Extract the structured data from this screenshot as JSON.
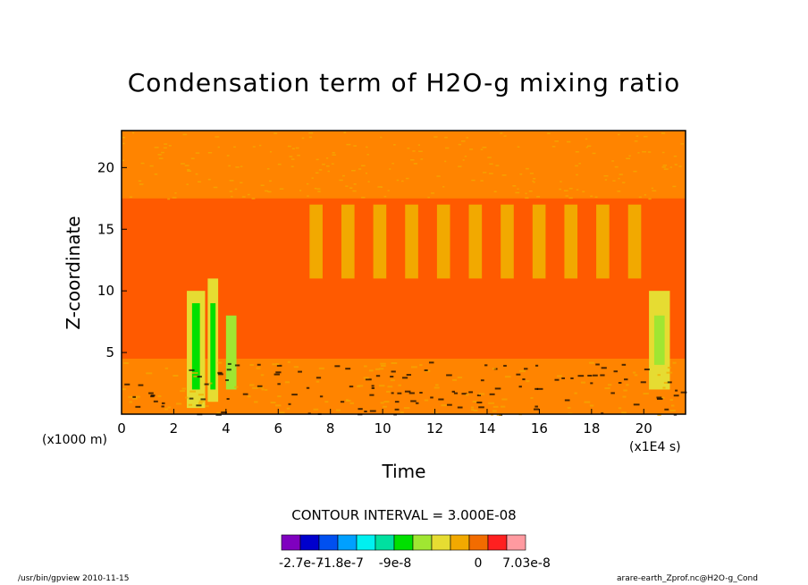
{
  "chart_data": {
    "type": "heatmap",
    "title": "Condensation term of H2O-g mixing ratio",
    "xlabel": "Time",
    "ylabel": "Z-coordinate",
    "x_scale_note": "(x1E4 s)",
    "y_unit_note": "(x1000 m)",
    "xlim": [
      0,
      21.6
    ],
    "ylim": [
      0,
      23
    ],
    "x_ticks": [
      "0",
      "2",
      "4",
      "6",
      "8",
      "10",
      "12",
      "14",
      "16",
      "18",
      "20"
    ],
    "y_ticks": [
      "5",
      "10",
      "15",
      "20"
    ],
    "contour_interval": "CONTOUR INTERVAL = 3.000E-08",
    "colorbar": {
      "labels": [
        "-2.7e-7",
        "-1.8e-7",
        "-9e-8",
        "0",
        "7.03e-8"
      ],
      "colors": [
        "#7f00bf",
        "#0000cd",
        "#0050f0",
        "#00a0ff",
        "#00f0f0",
        "#00e0a0",
        "#00e000",
        "#a0e632",
        "#e6dc32",
        "#f2a900",
        "#f26c00",
        "#ff2020",
        "#ff9aa0"
      ]
    },
    "regions": [
      {
        "x": [
          0,
          21.6
        ],
        "y": [
          0,
          23
        ],
        "color": "#ff5a00"
      },
      {
        "x": [
          0,
          21.6
        ],
        "y": [
          17.5,
          23
        ],
        "color": "#ff8400"
      },
      {
        "x": [
          0,
          21.6
        ],
        "y": [
          0,
          4.5
        ],
        "color": "#ff8400"
      },
      {
        "x": [
          2.5,
          3.2
        ],
        "y": [
          0.5,
          10
        ],
        "color": "#e6dc32"
      },
      {
        "x": [
          2.7,
          3.0
        ],
        "y": [
          2,
          9
        ],
        "color": "#00e000"
      },
      {
        "x": [
          3.3,
          3.7
        ],
        "y": [
          1,
          11
        ],
        "color": "#e6dc32"
      },
      {
        "x": [
          3.4,
          3.6
        ],
        "y": [
          2,
          9
        ],
        "color": "#00e000"
      },
      {
        "x": [
          4.0,
          4.4
        ],
        "y": [
          2,
          8
        ],
        "color": "#a0e632"
      },
      {
        "x": [
          20.2,
          21.0
        ],
        "y": [
          2,
          10
        ],
        "color": "#e6dc32"
      },
      {
        "x": [
          20.4,
          20.8
        ],
        "y": [
          4,
          8
        ],
        "color": "#a0e632"
      }
    ]
  },
  "footer": {
    "left": "/usr/bin/gpview   2010-11-15",
    "right": "arare-earth_Zprof.nc@H2O-g_Cond"
  }
}
